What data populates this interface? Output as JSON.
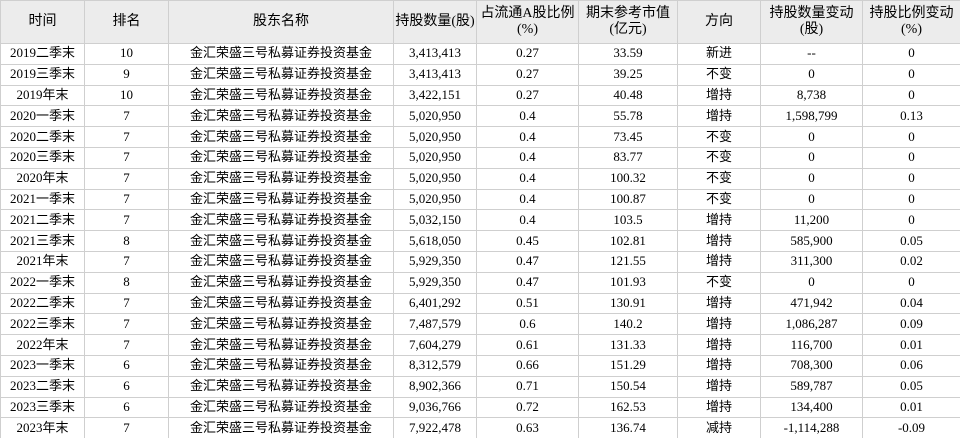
{
  "table": {
    "header": [
      "时间",
      "排名",
      "股东名称",
      "持股数量(股)",
      "占流通A股比例\n(%)",
      "期末参考市值\n(亿元)",
      "方向",
      "持股数量变动\n(股)",
      "持股比例变动\n(%)"
    ],
    "rows": [
      [
        "2019二季末",
        "10",
        "金汇荣盛三号私募证券投资基金",
        "3,413,413",
        "0.27",
        "33.59",
        "新进",
        "--",
        "0"
      ],
      [
        "2019三季末",
        "9",
        "金汇荣盛三号私募证券投资基金",
        "3,413,413",
        "0.27",
        "39.25",
        "不变",
        "0",
        "0"
      ],
      [
        "2019年末",
        "10",
        "金汇荣盛三号私募证券投资基金",
        "3,422,151",
        "0.27",
        "40.48",
        "增持",
        "8,738",
        "0"
      ],
      [
        "2020一季末",
        "7",
        "金汇荣盛三号私募证券投资基金",
        "5,020,950",
        "0.4",
        "55.78",
        "增持",
        "1,598,799",
        "0.13"
      ],
      [
        "2020二季末",
        "7",
        "金汇荣盛三号私募证券投资基金",
        "5,020,950",
        "0.4",
        "73.45",
        "不变",
        "0",
        "0"
      ],
      [
        "2020三季末",
        "7",
        "金汇荣盛三号私募证券投资基金",
        "5,020,950",
        "0.4",
        "83.77",
        "不变",
        "0",
        "0"
      ],
      [
        "2020年末",
        "7",
        "金汇荣盛三号私募证券投资基金",
        "5,020,950",
        "0.4",
        "100.32",
        "不变",
        "0",
        "0"
      ],
      [
        "2021一季末",
        "7",
        "金汇荣盛三号私募证券投资基金",
        "5,020,950",
        "0.4",
        "100.87",
        "不变",
        "0",
        "0"
      ],
      [
        "2021二季末",
        "7",
        "金汇荣盛三号私募证券投资基金",
        "5,032,150",
        "0.4",
        "103.5",
        "增持",
        "11,200",
        "0"
      ],
      [
        "2021三季末",
        "8",
        "金汇荣盛三号私募证券投资基金",
        "5,618,050",
        "0.45",
        "102.81",
        "增持",
        "585,900",
        "0.05"
      ],
      [
        "2021年末",
        "7",
        "金汇荣盛三号私募证券投资基金",
        "5,929,350",
        "0.47",
        "121.55",
        "增持",
        "311,300",
        "0.02"
      ],
      [
        "2022一季末",
        "8",
        "金汇荣盛三号私募证券投资基金",
        "5,929,350",
        "0.47",
        "101.93",
        "不变",
        "0",
        "0"
      ],
      [
        "2022二季末",
        "7",
        "金汇荣盛三号私募证券投资基金",
        "6,401,292",
        "0.51",
        "130.91",
        "增持",
        "471,942",
        "0.04"
      ],
      [
        "2022三季末",
        "7",
        "金汇荣盛三号私募证券投资基金",
        "7,487,579",
        "0.6",
        "140.2",
        "增持",
        "1,086,287",
        "0.09"
      ],
      [
        "2022年末",
        "7",
        "金汇荣盛三号私募证券投资基金",
        "7,604,279",
        "0.61",
        "131.33",
        "增持",
        "116,700",
        "0.01"
      ],
      [
        "2023一季末",
        "6",
        "金汇荣盛三号私募证券投资基金",
        "8,312,579",
        "0.66",
        "151.29",
        "增持",
        "708,300",
        "0.06"
      ],
      [
        "2023二季末",
        "6",
        "金汇荣盛三号私募证券投资基金",
        "8,902,366",
        "0.71",
        "150.54",
        "增持",
        "589,787",
        "0.05"
      ],
      [
        "2023三季末",
        "6",
        "金汇荣盛三号私募证券投资基金",
        "9,036,766",
        "0.72",
        "162.53",
        "增持",
        "134,400",
        "0.01"
      ],
      [
        "2023年末",
        "7",
        "金汇荣盛三号私募证券投资基金",
        "7,922,478",
        "0.63",
        "136.74",
        "减持",
        "-1,114,288",
        "-0.09"
      ]
    ]
  }
}
